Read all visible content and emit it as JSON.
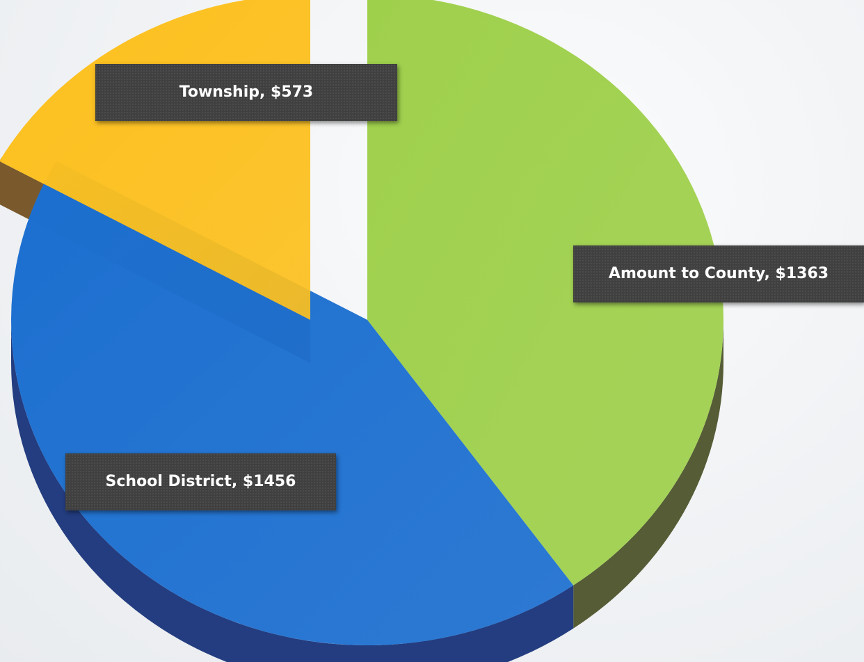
{
  "chart_data": {
    "type": "pie",
    "title": "",
    "slices": [
      {
        "label": "Amount to County",
        "value": 1363,
        "data_label": "Amount to County, $1363",
        "color": "#9fd04c",
        "side_color": "#555c36"
      },
      {
        "label": "School District",
        "value": 1456,
        "data_label": "School District, $1456",
        "color": "#1c6fd0",
        "side_color": "#233d80"
      },
      {
        "label": "Township",
        "value": 573,
        "data_label": "Township,  $573",
        "color": "#fcc01e",
        "side_color": "#7a5a2c",
        "exploded": true
      }
    ],
    "legend": "none",
    "style": "3d"
  }
}
